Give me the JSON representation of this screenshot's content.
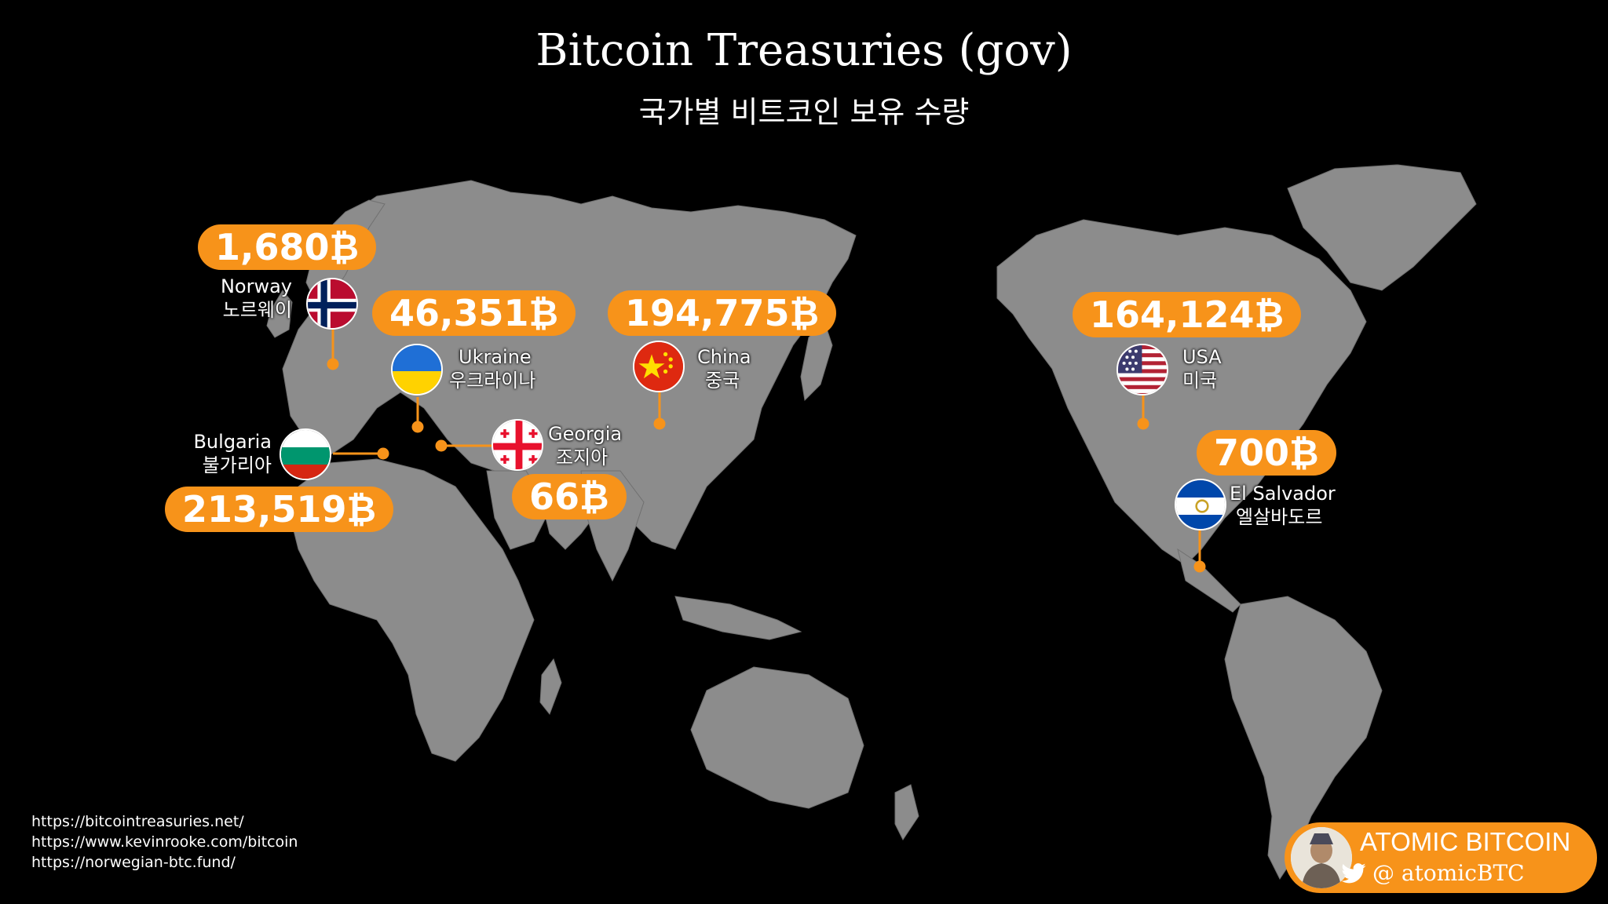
{
  "title": "Bitcoin Treasuries (gov)",
  "subtitle": "국가별 비트코인 보유 수량",
  "colors": {
    "accent": "#f7931a",
    "land": "#8c8c8c",
    "background": "#000000"
  },
  "countries": {
    "norway": {
      "name": "Norway",
      "name_ko": "노르웨이",
      "holdings": "1,680₿"
    },
    "ukraine": {
      "name": "Ukraine",
      "name_ko": "우크라이나",
      "holdings": "46,351₿"
    },
    "bulgaria": {
      "name": "Bulgaria",
      "name_ko": "불가리아",
      "holdings": "213,519₿"
    },
    "georgia": {
      "name": "Georgia",
      "name_ko": "조지아",
      "holdings": "66₿"
    },
    "china": {
      "name": "China",
      "name_ko": "중국",
      "holdings": "194,775₿"
    },
    "usa": {
      "name": "USA",
      "name_ko": "미국",
      "holdings": "164,124₿"
    },
    "el_salvador": {
      "name": "El Salvador",
      "name_ko": "엘살바도르",
      "holdings": "700₿"
    }
  },
  "sources": [
    "https://bitcointreasuries.net/",
    "https://www.kevinrooke.com/bitcoin",
    "https://norwegian-btc.fund/"
  ],
  "brand": {
    "name": "ATOMIC BITCOIN",
    "handle": "@ atomicBTC",
    "icon": "twitter-bird-icon"
  }
}
